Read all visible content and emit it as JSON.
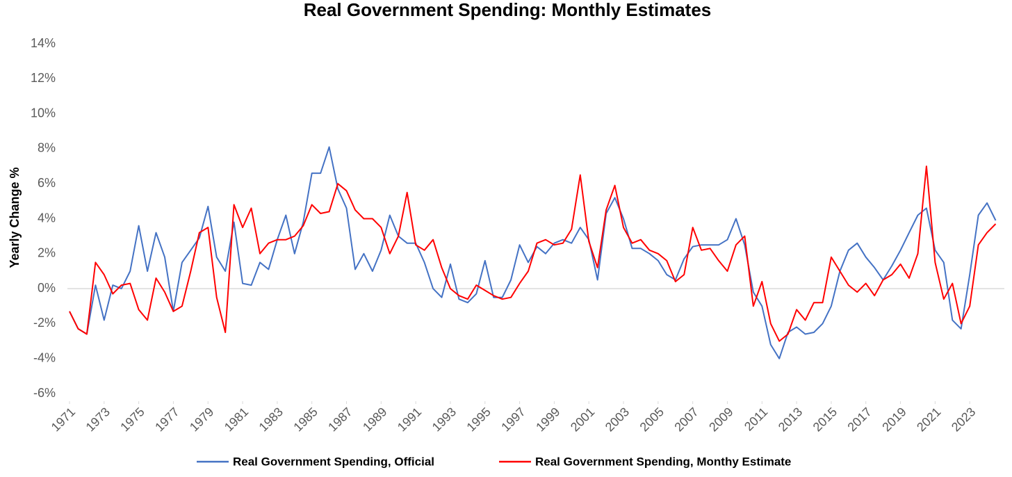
{
  "chart_data": {
    "type": "line",
    "title": "Real Government Spending: Monthly Estimates",
    "y_label": "Yearly Change %",
    "x": [
      1971,
      1971.5,
      1972,
      1972.5,
      1973,
      1973.5,
      1974,
      1974.5,
      1975,
      1975.5,
      1976,
      1976.5,
      1977,
      1977.5,
      1978,
      1978.5,
      1979,
      1979.5,
      1980,
      1980.5,
      1981,
      1981.5,
      1982,
      1982.5,
      1983,
      1983.5,
      1984,
      1984.5,
      1985,
      1985.5,
      1986,
      1986.5,
      1987,
      1987.5,
      1988,
      1988.5,
      1989,
      1989.5,
      1990,
      1990.5,
      1991,
      1991.5,
      1992,
      1992.5,
      1993,
      1993.5,
      1994,
      1994.5,
      1995,
      1995.5,
      1996,
      1996.5,
      1997,
      1997.5,
      1998,
      1998.5,
      1999,
      1999.5,
      2000,
      2000.5,
      2001,
      2001.5,
      2002,
      2002.5,
      2003,
      2003.5,
      2004,
      2004.5,
      2005,
      2005.5,
      2006,
      2006.5,
      2007,
      2007.5,
      2008,
      2008.5,
      2009,
      2009.5,
      2010,
      2010.5,
      2011,
      2011.5,
      2012,
      2012.5,
      2013,
      2013.5,
      2014,
      2014.5,
      2015,
      2015.5,
      2016,
      2016.5,
      2017,
      2017.5,
      2018,
      2018.5,
      2019,
      2019.5,
      2020,
      2020.5,
      2021,
      2021.5,
      2022,
      2022.5,
      2023,
      2023.5,
      2024,
      2024.5
    ],
    "series": [
      {
        "name": "Real Government Spending, Official",
        "color": "#4472c4",
        "values": [
          -1.3,
          -2.3,
          -2.6,
          0.2,
          -1.8,
          0.2,
          0,
          1.0,
          3.6,
          1.0,
          3.2,
          1.8,
          -1.3,
          1.5,
          2.2,
          2.9,
          4.7,
          1.8,
          1.0,
          3.8,
          0.3,
          0.2,
          1.5,
          1.1,
          2.8,
          4.2,
          2.0,
          3.8,
          6.6,
          6.6,
          8.1,
          5.7,
          4.6,
          1.1,
          2.0,
          1.0,
          2.2,
          4.2,
          3.0,
          2.6,
          2.6,
          1.5,
          0,
          -0.5,
          1.4,
          -0.6,
          -0.8,
          -0.3,
          1.6,
          -0.5,
          -0.5,
          0.5,
          2.5,
          1.5,
          2.4,
          2.0,
          2.6,
          2.8,
          2.6,
          3.5,
          2.8,
          0.5,
          4.3,
          5.2,
          4.0,
          2.3,
          2.3,
          2.0,
          1.6,
          0.8,
          0.5,
          1.7,
          2.4,
          2.5,
          2.5,
          2.5,
          2.8,
          4.0,
          2.5,
          -0.2,
          -1.0,
          -3.2,
          -4.0,
          -2.5,
          -2.2,
          -2.6,
          -2.5,
          -2.0,
          -1.0,
          1.0,
          2.2,
          2.6,
          1.8,
          1.2,
          0.5,
          1.3,
          2.2,
          3.2,
          4.2,
          4.6,
          2.2,
          1.5,
          -1.8,
          -2.3,
          0.8,
          4.2,
          4.9,
          3.9
        ]
      },
      {
        "name": "Real Government Spending, Monthy Estimate",
        "color": "#ff0000",
        "values": [
          -1.3,
          -2.3,
          -2.6,
          1.5,
          0.8,
          -0.3,
          0.2,
          0.3,
          -1.2,
          -1.8,
          0.6,
          -0.2,
          -1.3,
          -1.0,
          1.0,
          3.2,
          3.5,
          -0.5,
          -2.5,
          4.8,
          3.5,
          4.6,
          2.0,
          2.6,
          2.8,
          2.8,
          3.0,
          3.6,
          4.8,
          4.3,
          4.4,
          6.0,
          5.6,
          4.5,
          4.0,
          4.0,
          3.5,
          2.0,
          3.0,
          5.5,
          2.5,
          2.2,
          2.8,
          1.2,
          0.0,
          -0.4,
          -0.6,
          0.2,
          -0.1,
          -0.4,
          -0.6,
          -0.5,
          0.3,
          1.0,
          2.6,
          2.8,
          2.5,
          2.6,
          3.4,
          6.5,
          2.7,
          1.2,
          4.5,
          5.9,
          3.5,
          2.6,
          2.8,
          2.2,
          2.0,
          1.6,
          0.4,
          0.8,
          3.5,
          2.2,
          2.3,
          1.6,
          1.0,
          2.5,
          3.0,
          -1.0,
          0.4,
          -2.0,
          -3.0,
          -2.6,
          -1.2,
          -1.8,
          -0.8,
          -0.8,
          1.8,
          1.0,
          0.2,
          -0.2,
          0.3,
          -0.4,
          0.5,
          0.8,
          1.4,
          0.6,
          2.0,
          7.0,
          1.5,
          -0.6,
          0.3,
          -2.0,
          -1.0,
          2.5,
          3.2,
          3.7
        ]
      }
    ],
    "xlim": [
      1971,
      2025
    ],
    "xticks": [
      1971,
      1973,
      1975,
      1977,
      1979,
      1981,
      1983,
      1985,
      1987,
      1989,
      1991,
      1993,
      1995,
      1997,
      1999,
      2001,
      2003,
      2005,
      2007,
      2009,
      2011,
      2013,
      2015,
      2017,
      2019,
      2021,
      2023
    ],
    "ylim": [
      -6,
      14
    ],
    "yticks": [
      {
        "value": -6,
        "label": "-6%"
      },
      {
        "value": -4,
        "label": "-4%"
      },
      {
        "value": -2,
        "label": "-2%"
      },
      {
        "value": 0,
        "label": "0%"
      },
      {
        "value": 2,
        "label": "2%"
      },
      {
        "value": 4,
        "label": "4%"
      },
      {
        "value": 6,
        "label": "6%"
      },
      {
        "value": 8,
        "label": "8%"
      },
      {
        "value": 10,
        "label": "10%"
      },
      {
        "value": 12,
        "label": "12%"
      },
      {
        "value": 14,
        "label": "14%"
      }
    ],
    "grid": false,
    "legend": "bottom"
  }
}
